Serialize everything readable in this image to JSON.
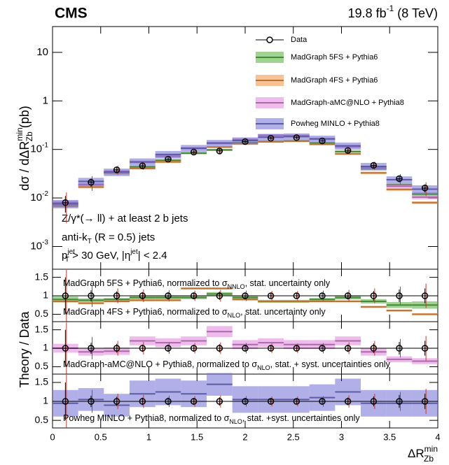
{
  "chart_data": {
    "type": "histogram",
    "experiment": "CMS",
    "lumi": [
      "19.8 fb",
      "-1",
      " (8 TeV)"
    ],
    "ylabel": [
      "dσ / dΔR",
      "min",
      "Zb",
      " (pb)"
    ],
    "ratio_ylabel": "Theory / Data",
    "xlabel": [
      "ΔR",
      "min",
      "Zb"
    ],
    "annotations": [
      [
        "Z/γ*(→ ll) + at least 2 b jets"
      ],
      [
        "anti-k",
        "T",
        " (R = 0.5) jets"
      ],
      [
        "p",
        "jet",
        "T",
        " > 30 GeV, |η",
        "jet",
        "| < 2.4"
      ]
    ],
    "bins": [
      0,
      0.267,
      0.533,
      0.8,
      1.067,
      1.333,
      1.6,
      1.867,
      2.133,
      2.4,
      2.667,
      2.933,
      3.2,
      3.467,
      3.733,
      4
    ],
    "xlim": [
      0,
      4
    ],
    "xticks": [
      0,
      0.5,
      1,
      1.5,
      2,
      2.5,
      3,
      3.5,
      4
    ],
    "ylim": [
      0.00034,
      34
    ],
    "log_y": true,
    "yticks": [
      {
        "value": 0.001,
        "label": "10",
        "exponent": "-3"
      },
      {
        "value": 0.01,
        "label": "10",
        "exponent": "-2"
      },
      {
        "value": 0.1,
        "label": "10",
        "exponent": "-1"
      },
      1,
      10
    ],
    "legend": "upper right",
    "series": [
      {
        "name": "Data",
        "style": "markers",
        "color": "#000000",
        "total_color": "#c0392b",
        "values": [
          0.008,
          0.021,
          0.038,
          0.046,
          0.063,
          0.088,
          0.093,
          0.145,
          0.17,
          0.175,
          0.15,
          0.095,
          0.047,
          0.025,
          0.016
        ],
        "errors": [
          0.003,
          0.004,
          0.005,
          0.005,
          0.006,
          0.008,
          0.01,
          0.013,
          0.014,
          0.014,
          0.013,
          0.01,
          0.006,
          0.004,
          0.003
        ],
        "total_errors": [
          0.005,
          0.007,
          0.008,
          0.008,
          0.009,
          0.012,
          0.014,
          0.02,
          0.022,
          0.022,
          0.02,
          0.015,
          0.009,
          0.006,
          0.005
        ]
      },
      {
        "name": "MadGraph 5FS + Pythia6",
        "style": "band",
        "color": "#5fb54a",
        "values": [
          0.0072,
          0.0185,
          0.0342,
          0.0437,
          0.0599,
          0.0836,
          0.0977,
          0.1378,
          0.1445,
          0.1488,
          0.135,
          0.0903,
          0.04,
          0.0188,
          0.012
        ],
        "errors": [
          0.0005,
          0.001,
          0.002,
          0.002,
          0.003,
          0.004,
          0.005,
          0.007,
          0.007,
          0.007,
          0.007,
          0.005,
          0.002,
          0.001,
          0.001
        ]
      },
      {
        "name": "MadGraph 4FS + Pythia6",
        "style": "band",
        "color": "#f39a4c",
        "values": [
          0.0068,
          0.0168,
          0.0323,
          0.0405,
          0.0554,
          0.1056,
          0.1116,
          0.1305,
          0.1445,
          0.1488,
          0.1275,
          0.0808,
          0.0329,
          0.015,
          0.008
        ],
        "errors": [
          0.0004,
          0.001,
          0.002,
          0.002,
          0.003,
          0.005,
          0.005,
          0.006,
          0.007,
          0.007,
          0.006,
          0.004,
          0.002,
          0.001,
          0.0005
        ]
      },
      {
        "name": "MadGraph-aMC@NLO + Pythia8",
        "style": "band",
        "color": "#e38ee0",
        "values": [
          0.008,
          0.0189,
          0.035,
          0.0552,
          0.0725,
          0.1056,
          0.1349,
          0.1595,
          0.1955,
          0.1925,
          0.165,
          0.114,
          0.0423,
          0.0175,
          0.0104
        ],
        "errors": [
          0.0008,
          0.0015,
          0.003,
          0.004,
          0.005,
          0.007,
          0.009,
          0.01,
          0.012,
          0.012,
          0.01,
          0.007,
          0.003,
          0.0015,
          0.001
        ]
      },
      {
        "name": "Powheg MINLO + Pythia8",
        "style": "band",
        "color": "#7b79d9",
        "values": [
          0.0076,
          0.022,
          0.0342,
          0.0552,
          0.0788,
          0.1056,
          0.1349,
          0.1523,
          0.1785,
          0.1838,
          0.165,
          0.1188,
          0.0447,
          0.0238,
          0.0152
        ],
        "errors": [
          0.0015,
          0.004,
          0.006,
          0.01,
          0.014,
          0.018,
          0.022,
          0.025,
          0.03,
          0.03,
          0.027,
          0.02,
          0.008,
          0.004,
          0.003
        ]
      }
    ],
    "ratio_panels": [
      {
        "ylim": [
          0.3,
          1.72
        ],
        "yticks": [
          0.5,
          1,
          1.5
        ],
        "labels": [
          [
            "MadGraph 5FS + Pythia6, normalized to σ",
            "NNLO",
            ", stat. uncertainty only"
          ],
          [
            "MadGraph 4FS + Pythia6, normalized to σ",
            "NLO",
            ", stat. uncertainty only"
          ]
        ],
        "series": [
          {
            "color": "#5fb54a",
            "values": [
              0.9,
              0.88,
              0.9,
              0.95,
              0.95,
              0.95,
              1.05,
              0.95,
              0.85,
              0.85,
              0.9,
              0.95,
              0.85,
              0.75,
              0.75
            ],
            "errors": [
              0.08,
              0.05,
              0.04,
              0.04,
              0.04,
              0.04,
              0.05,
              0.04,
              0.04,
              0.04,
              0.04,
              0.05,
              0.06,
              0.08,
              0.1
            ]
          },
          {
            "color": "#f39a4c",
            "values": [
              0.85,
              0.8,
              0.85,
              0.88,
              0.88,
              1.2,
              1.2,
              0.9,
              0.85,
              0.85,
              0.85,
              0.85,
              0.7,
              0.6,
              0.5
            ],
            "errors": [
              0.03,
              0.03,
              0.03,
              0.03,
              0.03,
              0.03,
              0.03,
              0.03,
              0.03,
              0.03,
              0.03,
              0.03,
              0.03,
              0.03,
              0.03
            ]
          }
        ],
        "data_ratio": {
          "values": [
            1,
            1,
            1,
            1,
            1,
            1,
            1,
            1,
            1,
            1,
            1,
            1,
            1,
            1,
            1
          ],
          "errors": [
            0.5,
            0.15,
            0.12,
            0.1,
            0.1,
            0.09,
            0.11,
            0.09,
            0.08,
            0.08,
            0.09,
            0.1,
            0.13,
            0.17,
            0.2
          ],
          "total_errors": [
            0.7,
            0.3,
            0.2,
            0.17,
            0.15,
            0.14,
            0.16,
            0.14,
            0.13,
            0.13,
            0.14,
            0.16,
            0.2,
            0.25,
            0.33
          ]
        }
      },
      {
        "ylim": [
          0.3,
          1.72
        ],
        "yticks": [
          0.5,
          1,
          1.5
        ],
        "labels": [
          [
            "MadGraph-aMC@NLO + Pythia8, normalized to σ",
            "NLO",
            ", stat. + syst. uncertainties only"
          ]
        ],
        "series": [
          {
            "color": "#e38ee0",
            "values": [
              1.0,
              0.9,
              0.92,
              1.2,
              1.15,
              1.2,
              1.45,
              1.1,
              1.15,
              1.1,
              1.1,
              1.2,
              0.9,
              0.7,
              0.65
            ],
            "errors": [
              0.12,
              0.1,
              0.1,
              0.12,
              0.12,
              0.12,
              0.15,
              0.12,
              0.12,
              0.12,
              0.12,
              0.12,
              0.1,
              0.08,
              0.08
            ]
          }
        ],
        "data_ratio": {
          "values": [
            1,
            1,
            1,
            1,
            1,
            1,
            1,
            1,
            1,
            1,
            1,
            1,
            1,
            1,
            1
          ],
          "errors": [
            0.5,
            0.15,
            0.12,
            0.1,
            0.1,
            0.09,
            0.11,
            0.09,
            0.08,
            0.08,
            0.09,
            0.1,
            0.13,
            0.17,
            0.2
          ],
          "total_errors": [
            0.7,
            0.3,
            0.2,
            0.17,
            0.15,
            0.14,
            0.16,
            0.14,
            0.13,
            0.13,
            0.14,
            0.16,
            0.2,
            0.25,
            0.33
          ]
        }
      },
      {
        "ylim": [
          0.3,
          1.72
        ],
        "yticks": [
          0.5,
          1,
          1.5
        ],
        "labels": [
          [
            "Powheg MINLO + Pythia8, normalized to σ",
            "NLO",
            ", stat. +syst. uncertainties only"
          ]
        ],
        "series": [
          {
            "color": "#7b79d9",
            "values": [
              0.95,
              1.05,
              0.9,
              1.2,
              1.25,
              1.2,
              1.45,
              1.05,
              1.05,
              1.05,
              1.1,
              1.25,
              0.95,
              0.95,
              0.95
            ],
            "errors": [
              0.35,
              0.3,
              0.3,
              0.35,
              0.35,
              0.35,
              0.3,
              0.35,
              0.35,
              0.35,
              0.35,
              0.35,
              0.35,
              0.35,
              0.35
            ]
          }
        ],
        "data_ratio": {
          "values": [
            1,
            1,
            1,
            1,
            1,
            1,
            1,
            1,
            1,
            1,
            1,
            1,
            1,
            1,
            1
          ],
          "errors": [
            0.5,
            0.15,
            0.12,
            0.1,
            0.1,
            0.09,
            0.11,
            0.09,
            0.08,
            0.08,
            0.09,
            0.1,
            0.13,
            0.17,
            0.2
          ],
          "total_errors": [
            0.7,
            0.3,
            0.2,
            0.17,
            0.15,
            0.14,
            0.16,
            0.14,
            0.13,
            0.13,
            0.14,
            0.16,
            0.2,
            0.25,
            0.33
          ]
        }
      }
    ]
  }
}
